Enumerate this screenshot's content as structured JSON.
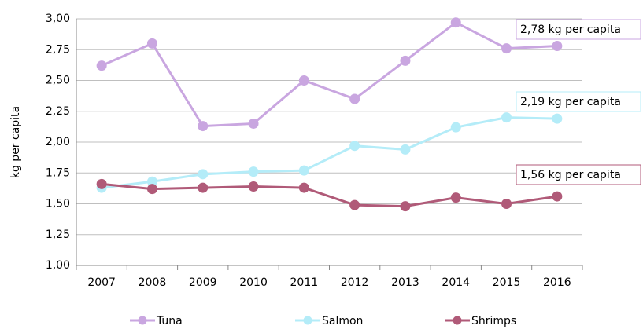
{
  "chart_data": {
    "type": "line",
    "y_label": "kg per capita",
    "categories": [
      "2007",
      "2008",
      "2009",
      "2010",
      "2011",
      "2012",
      "2013",
      "2014",
      "2015",
      "2016"
    ],
    "series": [
      {
        "name": "Tuna",
        "color": "#c9a6e0",
        "values": [
          2.62,
          2.8,
          2.13,
          2.15,
          2.5,
          2.35,
          2.66,
          2.97,
          2.76,
          2.78
        ]
      },
      {
        "name": "Salmon",
        "color": "#b4ecf8",
        "values": [
          1.63,
          1.68,
          1.74,
          1.76,
          1.77,
          1.97,
          1.94,
          2.12,
          2.2,
          2.19
        ]
      },
      {
        "name": "Shrimps",
        "color": "#b05a78",
        "values": [
          1.66,
          1.62,
          1.63,
          1.64,
          1.63,
          1.49,
          1.48,
          1.55,
          1.5,
          1.56
        ]
      }
    ],
    "annotations": [
      "2,78 kg per capita",
      "2,19 kg per capita",
      "1,56 kg per capita"
    ],
    "ylim": [
      1,
      3
    ],
    "yticks": [
      {
        "value": 1,
        "label": "1,00"
      },
      {
        "value": 1.25,
        "label": "1,25"
      },
      {
        "value": 1.5,
        "label": "1,50"
      },
      {
        "value": 1.75,
        "label": "1,75"
      },
      {
        "value": 2,
        "label": "2,00"
      },
      {
        "value": 2.25,
        "label": "2,25"
      },
      {
        "value": 2.5,
        "label": "2,50"
      },
      {
        "value": 2.75,
        "label": "2,75"
      },
      {
        "value": 3,
        "label": "3,00"
      }
    ],
    "grid": true,
    "legend": "bottom"
  }
}
